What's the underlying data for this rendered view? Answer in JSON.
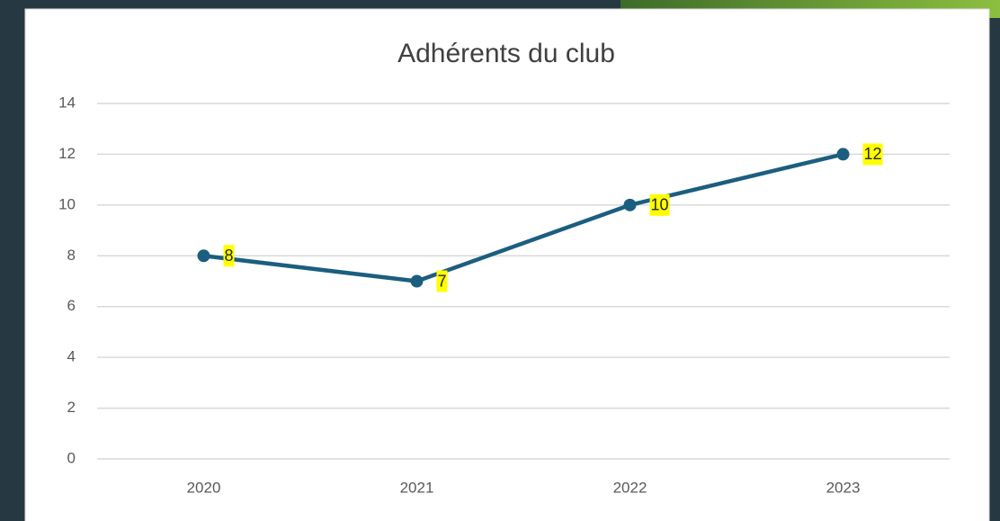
{
  "chart_data": {
    "type": "line",
    "title": "Adhérents du club",
    "categories": [
      "2020",
      "2021",
      "2022",
      "2023"
    ],
    "values": [
      8,
      7,
      10,
      12
    ],
    "color": "#1b5e80",
    "ylim": [
      0,
      14
    ],
    "yticks": [
      0,
      2,
      4,
      6,
      8,
      10,
      12,
      14
    ],
    "grid": true
  }
}
